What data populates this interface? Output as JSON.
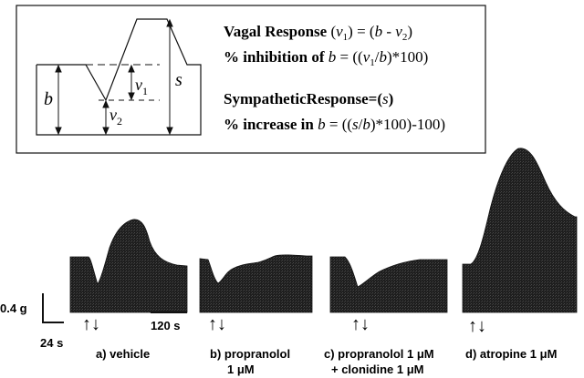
{
  "legend": {
    "sym_b": "b",
    "sym_s": "s",
    "sym_v1_base": "v",
    "sym_v1_sub": "1",
    "sym_v2_base": "v",
    "sym_v2_sub": "2",
    "vagal_label": "Vagal Response",
    "v_open": "(",
    "v_base": "v",
    "v_sub": "1",
    "v_close": ") = (",
    "b_italic": "b",
    "minus_v": " - v",
    "minus_v_sub": "2",
    "paren_close": ")",
    "inhib_label": "% inhibition of ",
    "inhib_b": "b",
    "inhib_eq_open": " = ((",
    "inhib_v": "v",
    "inhib_v_sub": "1",
    "inhib_slash": "/",
    "inhib_b2": "b",
    "inhib_tail": ")*100)",
    "symp_label": "SympatheticResponse=(",
    "symp_s": "s",
    "symp_close": ")",
    "incr_label": "% increase in ",
    "incr_b": "b",
    "incr_eq_open": " = ((",
    "incr_s": "s",
    "incr_slash": "/",
    "incr_b2": "b",
    "incr_tail": ")*100)-100)"
  },
  "traces": [
    {
      "name": "vehicle",
      "label_line1": "a) vehicle",
      "label_line2": ""
    },
    {
      "name": "propranolol",
      "label_line1": "b) propranolol",
      "label_line2": "1 μM"
    },
    {
      "name": "propranolol-clonidine",
      "label_line1": "c) propranolol 1 μM",
      "label_line2": "+ clonidine 1 μM"
    },
    {
      "name": "atropine",
      "label_line1": "d) atropine 1 μM",
      "label_line2": ""
    }
  ],
  "scale": {
    "force_label": "0.4 g",
    "time_label_left": "24 s",
    "time_label_right": "120 s"
  },
  "stim_marker": "↑↓",
  "colors": {
    "trace_fill": "#222222",
    "line": "#111111"
  }
}
